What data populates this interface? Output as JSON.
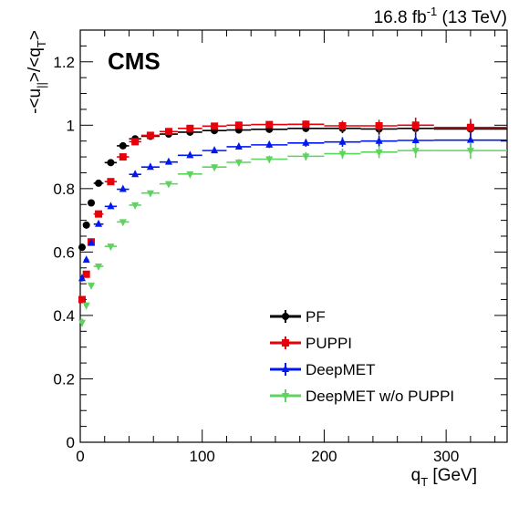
{
  "header": {
    "lumi_value": "16.8 fb",
    "lumi_exp": "-1",
    "energy": " (13 TeV)",
    "experiment": "CMS"
  },
  "chart_data": {
    "type": "scatter",
    "xlabel": {
      "main": "q",
      "sub": "T",
      "unit": " [GeV]"
    },
    "ylabel": "-<u_||>/<q_T>",
    "xlim": [
      0,
      350
    ],
    "ylim": [
      0,
      1.3
    ],
    "x_ticks": [
      0,
      100,
      200,
      300
    ],
    "y_ticks": [
      0,
      0.2,
      0.4,
      0.6,
      0.8,
      1,
      1.2
    ],
    "y_tick_labels": [
      "0",
      "0.2",
      "0.4",
      "0.6",
      "0.8",
      "1",
      "1.2"
    ],
    "grid": false,
    "legend_position": "bottom-center",
    "series": [
      {
        "name": "PF",
        "color": "#000000",
        "marker": "circle",
        "points": [
          {
            "x": 1.5,
            "xerr": 1.5,
            "y": 0.615,
            "yerr": 0.008
          },
          {
            "x": 5,
            "xerr": 2,
            "y": 0.685,
            "yerr": 0.006
          },
          {
            "x": 9,
            "xerr": 2,
            "y": 0.755,
            "yerr": 0.005
          },
          {
            "x": 15,
            "xerr": 4,
            "y": 0.817,
            "yerr": 0.004
          },
          {
            "x": 25,
            "xerr": 5,
            "y": 0.882,
            "yerr": 0.004
          },
          {
            "x": 35,
            "xerr": 5,
            "y": 0.935,
            "yerr": 0.004
          },
          {
            "x": 45,
            "xerr": 5,
            "y": 0.957,
            "yerr": 0.004
          },
          {
            "x": 57.5,
            "xerr": 7.5,
            "y": 0.965,
            "yerr": 0.004
          },
          {
            "x": 72.5,
            "xerr": 7.5,
            "y": 0.972,
            "yerr": 0.005
          },
          {
            "x": 90,
            "xerr": 10,
            "y": 0.978,
            "yerr": 0.006
          },
          {
            "x": 110,
            "xerr": 10,
            "y": 0.983,
            "yerr": 0.007
          },
          {
            "x": 130,
            "xerr": 10,
            "y": 0.985,
            "yerr": 0.008
          },
          {
            "x": 155,
            "xerr": 15,
            "y": 0.987,
            "yerr": 0.01
          },
          {
            "x": 185,
            "xerr": 15,
            "y": 0.99,
            "yerr": 0.012
          },
          {
            "x": 215,
            "xerr": 15,
            "y": 0.99,
            "yerr": 0.015
          },
          {
            "x": 245,
            "xerr": 15,
            "y": 0.988,
            "yerr": 0.018
          },
          {
            "x": 275,
            "xerr": 15,
            "y": 0.99,
            "yerr": 0.022
          },
          {
            "x": 320,
            "xerr": 30,
            "y": 0.988,
            "yerr": 0.025
          }
        ]
      },
      {
        "name": "PUPPI",
        "color": "#e8000b",
        "marker": "square",
        "points": [
          {
            "x": 1.5,
            "xerr": 1.5,
            "y": 0.45,
            "yerr": 0.01
          },
          {
            "x": 5,
            "xerr": 2,
            "y": 0.53,
            "yerr": 0.008
          },
          {
            "x": 9,
            "xerr": 2,
            "y": 0.632,
            "yerr": 0.007
          },
          {
            "x": 15,
            "xerr": 4,
            "y": 0.72,
            "yerr": 0.005
          },
          {
            "x": 25,
            "xerr": 5,
            "y": 0.822,
            "yerr": 0.005
          },
          {
            "x": 35,
            "xerr": 5,
            "y": 0.9,
            "yerr": 0.005
          },
          {
            "x": 45,
            "xerr": 5,
            "y": 0.948,
            "yerr": 0.005
          },
          {
            "x": 57.5,
            "xerr": 7.5,
            "y": 0.968,
            "yerr": 0.005
          },
          {
            "x": 72.5,
            "xerr": 7.5,
            "y": 0.98,
            "yerr": 0.006
          },
          {
            "x": 90,
            "xerr": 10,
            "y": 0.99,
            "yerr": 0.007
          },
          {
            "x": 110,
            "xerr": 10,
            "y": 0.997,
            "yerr": 0.008
          },
          {
            "x": 130,
            "xerr": 10,
            "y": 1.0,
            "yerr": 0.009
          },
          {
            "x": 155,
            "xerr": 15,
            "y": 1.002,
            "yerr": 0.01
          },
          {
            "x": 185,
            "xerr": 15,
            "y": 1.003,
            "yerr": 0.012
          },
          {
            "x": 215,
            "xerr": 15,
            "y": 0.998,
            "yerr": 0.016
          },
          {
            "x": 245,
            "xerr": 15,
            "y": 0.998,
            "yerr": 0.019
          },
          {
            "x": 275,
            "xerr": 15,
            "y": 1.0,
            "yerr": 0.024
          },
          {
            "x": 320,
            "xerr": 30,
            "y": 0.993,
            "yerr": 0.027
          }
        ]
      },
      {
        "name": "DeepMET",
        "color": "#0018f0",
        "marker": "triangle",
        "points": [
          {
            "x": 1.5,
            "xerr": 1.5,
            "y": 0.517,
            "yerr": 0.01
          },
          {
            "x": 5,
            "xerr": 2,
            "y": 0.575,
            "yerr": 0.008
          },
          {
            "x": 9,
            "xerr": 2,
            "y": 0.628,
            "yerr": 0.007
          },
          {
            "x": 15,
            "xerr": 4,
            "y": 0.688,
            "yerr": 0.005
          },
          {
            "x": 25,
            "xerr": 5,
            "y": 0.744,
            "yerr": 0.005
          },
          {
            "x": 35,
            "xerr": 5,
            "y": 0.798,
            "yerr": 0.005
          },
          {
            "x": 45,
            "xerr": 5,
            "y": 0.845,
            "yerr": 0.005
          },
          {
            "x": 57.5,
            "xerr": 7.5,
            "y": 0.868,
            "yerr": 0.005
          },
          {
            "x": 72.5,
            "xerr": 7.5,
            "y": 0.884,
            "yerr": 0.006
          },
          {
            "x": 90,
            "xerr": 10,
            "y": 0.905,
            "yerr": 0.007
          },
          {
            "x": 110,
            "xerr": 10,
            "y": 0.92,
            "yerr": 0.008
          },
          {
            "x": 130,
            "xerr": 10,
            "y": 0.932,
            "yerr": 0.009
          },
          {
            "x": 155,
            "xerr": 15,
            "y": 0.938,
            "yerr": 0.01
          },
          {
            "x": 185,
            "xerr": 15,
            "y": 0.944,
            "yerr": 0.012
          },
          {
            "x": 215,
            "xerr": 15,
            "y": 0.947,
            "yerr": 0.015
          },
          {
            "x": 245,
            "xerr": 15,
            "y": 0.95,
            "yerr": 0.018
          },
          {
            "x": 275,
            "xerr": 15,
            "y": 0.952,
            "yerr": 0.022
          },
          {
            "x": 320,
            "xerr": 30,
            "y": 0.953,
            "yerr": 0.025
          }
        ]
      },
      {
        "name": "DeepMET w/o PUPPI",
        "color": "#5fd35f",
        "marker": "triangle-down",
        "points": [
          {
            "x": 1.5,
            "xerr": 1.5,
            "y": 0.378,
            "yerr": 0.012
          },
          {
            "x": 5,
            "xerr": 2,
            "y": 0.432,
            "yerr": 0.009
          },
          {
            "x": 9,
            "xerr": 2,
            "y": 0.495,
            "yerr": 0.008
          },
          {
            "x": 15,
            "xerr": 4,
            "y": 0.555,
            "yerr": 0.006
          },
          {
            "x": 25,
            "xerr": 5,
            "y": 0.618,
            "yerr": 0.006
          },
          {
            "x": 35,
            "xerr": 5,
            "y": 0.695,
            "yerr": 0.006
          },
          {
            "x": 45,
            "xerr": 5,
            "y": 0.748,
            "yerr": 0.006
          },
          {
            "x": 57.5,
            "xerr": 7.5,
            "y": 0.786,
            "yerr": 0.006
          },
          {
            "x": 72.5,
            "xerr": 7.5,
            "y": 0.815,
            "yerr": 0.007
          },
          {
            "x": 90,
            "xerr": 10,
            "y": 0.846,
            "yerr": 0.008
          },
          {
            "x": 110,
            "xerr": 10,
            "y": 0.868,
            "yerr": 0.009
          },
          {
            "x": 130,
            "xerr": 10,
            "y": 0.883,
            "yerr": 0.01
          },
          {
            "x": 155,
            "xerr": 15,
            "y": 0.893,
            "yerr": 0.011
          },
          {
            "x": 185,
            "xerr": 15,
            "y": 0.902,
            "yerr": 0.013
          },
          {
            "x": 215,
            "xerr": 15,
            "y": 0.91,
            "yerr": 0.016
          },
          {
            "x": 245,
            "xerr": 15,
            "y": 0.915,
            "yerr": 0.019
          },
          {
            "x": 275,
            "xerr": 15,
            "y": 0.92,
            "yerr": 0.023
          },
          {
            "x": 320,
            "xerr": 30,
            "y": 0.92,
            "yerr": 0.026
          }
        ]
      }
    ]
  }
}
